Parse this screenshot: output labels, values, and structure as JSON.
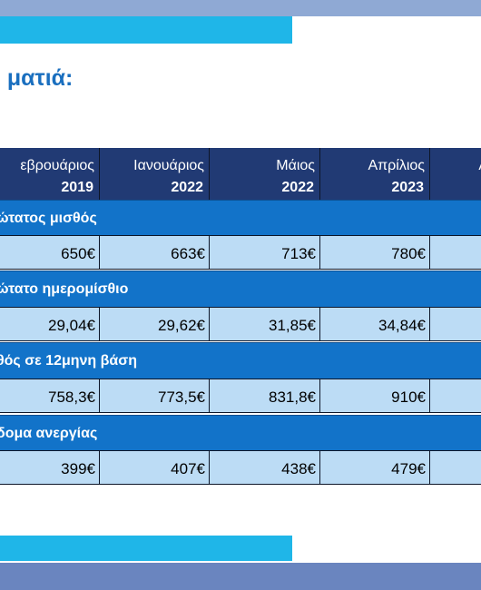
{
  "title": "ι ματιά:",
  "columns": [
    {
      "month": "εβρουάριος",
      "year": "2019"
    },
    {
      "month": "Ιανουάριος",
      "year": "2022"
    },
    {
      "month": "Μάιος",
      "year": "2022"
    },
    {
      "month": "Απρίλιος",
      "year": "2023"
    },
    {
      "month": "Α",
      "year": ""
    }
  ],
  "sections": [
    {
      "label": "ώτατος μισθός",
      "values": [
        "650€",
        "663€",
        "713€",
        "780€",
        ""
      ]
    },
    {
      "label": "ώτατο ημερομίσθιο",
      "values": [
        "29,04€",
        "29,62€",
        "31,85€",
        "34,84€",
        ""
      ]
    },
    {
      "label": "θός σε 12μηνη βάση",
      "values": [
        "758,3€",
        "773,5€",
        "831,8€",
        "910€",
        ""
      ]
    },
    {
      "label": "δομα ανεργίας",
      "values": [
        "399€",
        "407€",
        "438€",
        "479€",
        ""
      ]
    }
  ]
}
